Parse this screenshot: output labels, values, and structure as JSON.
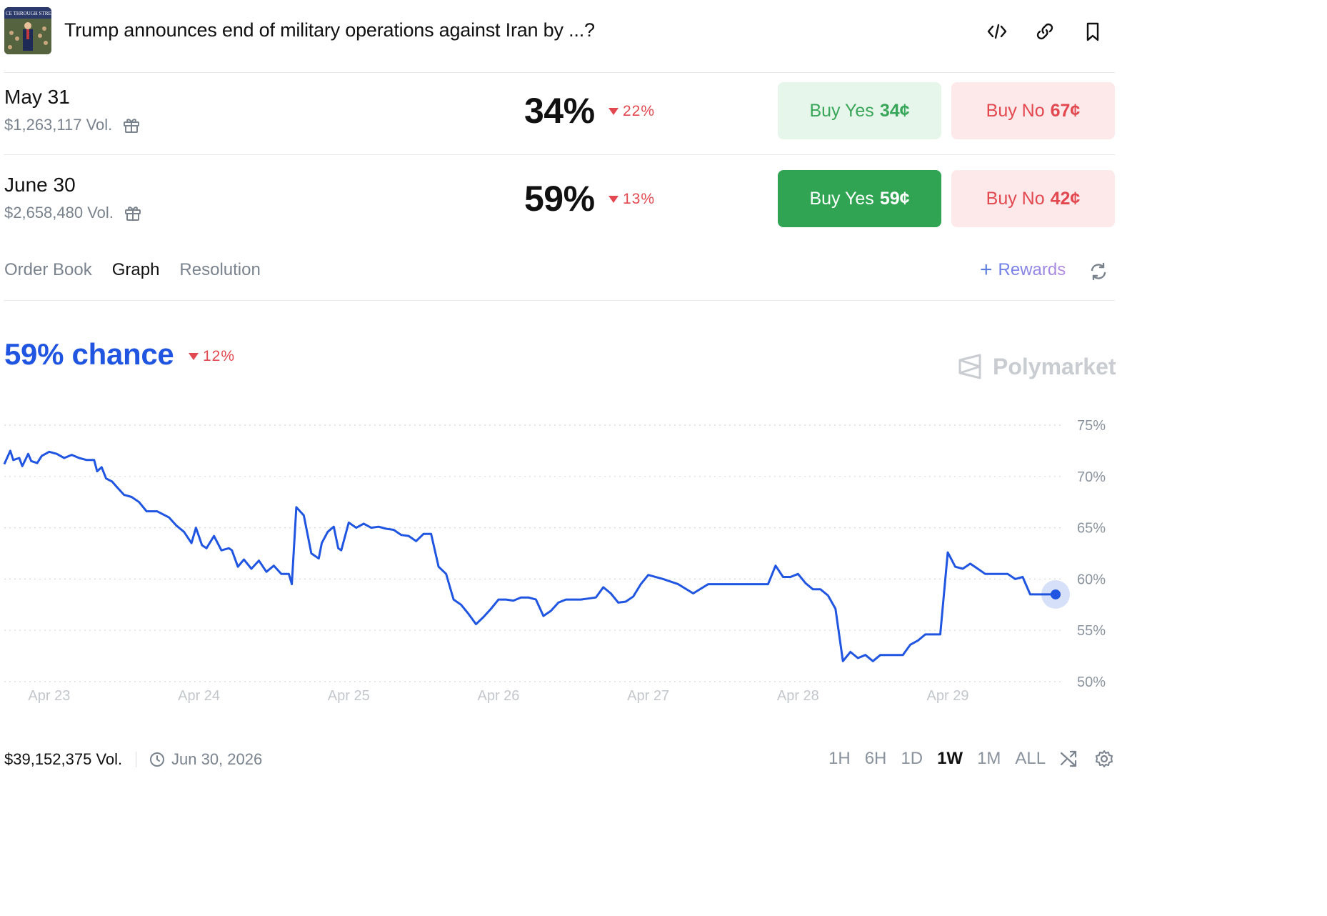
{
  "header": {
    "thumbnail_text": "CE THROUGH STRENG",
    "title": "Trump announces end of military operations against Iran by ...?",
    "icons": [
      "code-icon",
      "link-icon",
      "bookmark-icon"
    ]
  },
  "markets": [
    {
      "date": "May 31",
      "volume": "$1,263,117 Vol.",
      "percent": "34%",
      "change": "22%",
      "yes_label": "Buy Yes",
      "yes_price": "34¢",
      "no_label": "Buy No",
      "no_price": "67¢"
    },
    {
      "date": "June 30",
      "volume": "$2,658,480 Vol.",
      "percent": "59%",
      "change": "13%",
      "yes_label": "Buy Yes",
      "yes_price": "59¢",
      "no_label": "Buy No",
      "no_price": "42¢"
    }
  ],
  "tabs": [
    {
      "label": "Order Book",
      "active": false
    },
    {
      "label": "Graph",
      "active": true
    },
    {
      "label": "Resolution",
      "active": false
    }
  ],
  "rewards": {
    "plus": "+",
    "label": "Rewards"
  },
  "chart_header": {
    "chance": "59% chance",
    "change": "12%",
    "watermark": "Polymarket"
  },
  "colors": {
    "line": "#1f55e0",
    "down": "#e2484f",
    "yes_solid": "#30a453",
    "yes_light_bg": "#e6f6ea",
    "no_bg": "#fde9ea"
  },
  "chart_data": {
    "type": "line",
    "x_ticks": [
      "Apr 23",
      "Apr 24",
      "Apr 25",
      "Apr 26",
      "Apr 27",
      "Apr 28",
      "Apr 29"
    ],
    "y_ticks": [
      "75%",
      "70%",
      "65%",
      "60%",
      "55%",
      "50%"
    ],
    "y_tick_values": [
      75,
      70,
      65,
      60,
      55,
      50
    ],
    "ylim": [
      50,
      75
    ],
    "x_range_days": [
      22.7,
      29.72
    ],
    "grid": true,
    "series": [
      {
        "x": [
          22.7,
          22.74,
          22.76,
          22.8,
          22.82,
          22.86,
          22.88,
          22.92,
          22.95,
          23.0,
          23.05,
          23.1,
          23.15,
          23.2,
          23.25,
          23.3,
          23.32,
          23.35,
          23.38,
          23.42,
          23.45,
          23.5,
          23.55,
          23.6,
          23.65,
          23.72,
          23.8,
          23.85,
          23.9,
          23.95,
          23.98,
          24.02,
          24.05,
          24.1,
          24.15,
          24.2,
          24.22,
          24.26,
          24.3,
          24.35,
          24.4,
          24.45,
          24.5,
          24.55,
          24.6,
          24.62,
          24.65,
          24.7,
          24.75,
          24.8,
          24.82,
          24.86,
          24.9,
          24.93,
          24.95,
          25.0,
          25.05,
          25.1,
          25.15,
          25.2,
          25.25,
          25.3,
          25.35,
          25.4,
          25.45,
          25.5,
          25.55,
          25.6,
          25.65,
          25.7,
          25.75,
          25.8,
          25.85,
          25.9,
          25.95,
          26.0,
          26.05,
          26.1,
          26.15,
          26.2,
          26.25,
          26.3,
          26.35,
          26.4,
          26.45,
          26.5,
          26.55,
          26.6,
          26.65,
          26.7,
          26.75,
          26.8,
          26.85,
          26.9,
          26.95,
          27.0,
          27.1,
          27.2,
          27.3,
          27.4,
          27.5,
          27.6,
          27.7,
          27.8,
          27.85,
          27.9,
          27.95,
          28.0,
          28.05,
          28.1,
          28.15,
          28.2,
          28.25,
          28.3,
          28.35,
          28.4,
          28.45,
          28.5,
          28.55,
          28.6,
          28.65,
          28.7,
          28.75,
          28.8,
          28.85,
          28.9,
          28.95,
          29.0,
          29.05,
          29.1,
          29.15,
          29.2,
          29.25,
          29.3,
          29.35,
          29.4,
          29.45,
          29.5,
          29.55,
          29.6,
          29.65,
          29.72
        ],
        "values": [
          71.2,
          72.5,
          71.6,
          71.8,
          71.0,
          72.2,
          71.5,
          71.3,
          72.0,
          72.4,
          72.2,
          71.8,
          72.1,
          71.8,
          71.6,
          71.6,
          70.5,
          70.9,
          69.8,
          69.5,
          69.0,
          68.2,
          68.0,
          67.5,
          66.6,
          66.6,
          66.0,
          65.2,
          64.6,
          63.5,
          65.0,
          63.3,
          63.0,
          64.2,
          62.8,
          63.0,
          62.8,
          61.2,
          61.9,
          61.0,
          61.8,
          60.7,
          61.3,
          60.5,
          60.5,
          59.5,
          67.0,
          66.2,
          62.5,
          62.0,
          63.5,
          64.6,
          65.1,
          63.0,
          62.8,
          65.5,
          65.0,
          65.4,
          65.0,
          65.1,
          64.9,
          64.8,
          64.3,
          64.2,
          63.7,
          64.4,
          64.4,
          61.2,
          60.5,
          58.0,
          57.5,
          56.6,
          55.6,
          56.3,
          57.1,
          58.0,
          58.0,
          57.9,
          58.2,
          58.2,
          58.0,
          56.4,
          56.9,
          57.7,
          58.0,
          58.0,
          58.0,
          58.1,
          58.2,
          59.2,
          58.6,
          57.7,
          57.8,
          58.3,
          59.5,
          60.4,
          60.0,
          59.5,
          58.6,
          59.5,
          59.5,
          59.5,
          59.5,
          59.5,
          61.3,
          60.2,
          60.2,
          60.5,
          59.6,
          59.0,
          59.0,
          58.4,
          57.1,
          52.0,
          52.9,
          52.3,
          52.6,
          52.0,
          52.6,
          52.6,
          52.6,
          52.6,
          53.6,
          54.0,
          54.6,
          54.6,
          54.6,
          62.6,
          61.2,
          61.0,
          61.5,
          61.0,
          60.5,
          60.5,
          60.5,
          60.5,
          60.0,
          60.2,
          58.5,
          58.5,
          58.5,
          58.5
        ]
      }
    ]
  },
  "footer": {
    "volume": "$39,152,375 Vol.",
    "date": "Jun 30, 2026",
    "ranges": [
      {
        "label": "1H",
        "active": false
      },
      {
        "label": "6H",
        "active": false
      },
      {
        "label": "1D",
        "active": false
      },
      {
        "label": "1W",
        "active": true
      },
      {
        "label": "1M",
        "active": false
      },
      {
        "label": "ALL",
        "active": false
      }
    ]
  }
}
